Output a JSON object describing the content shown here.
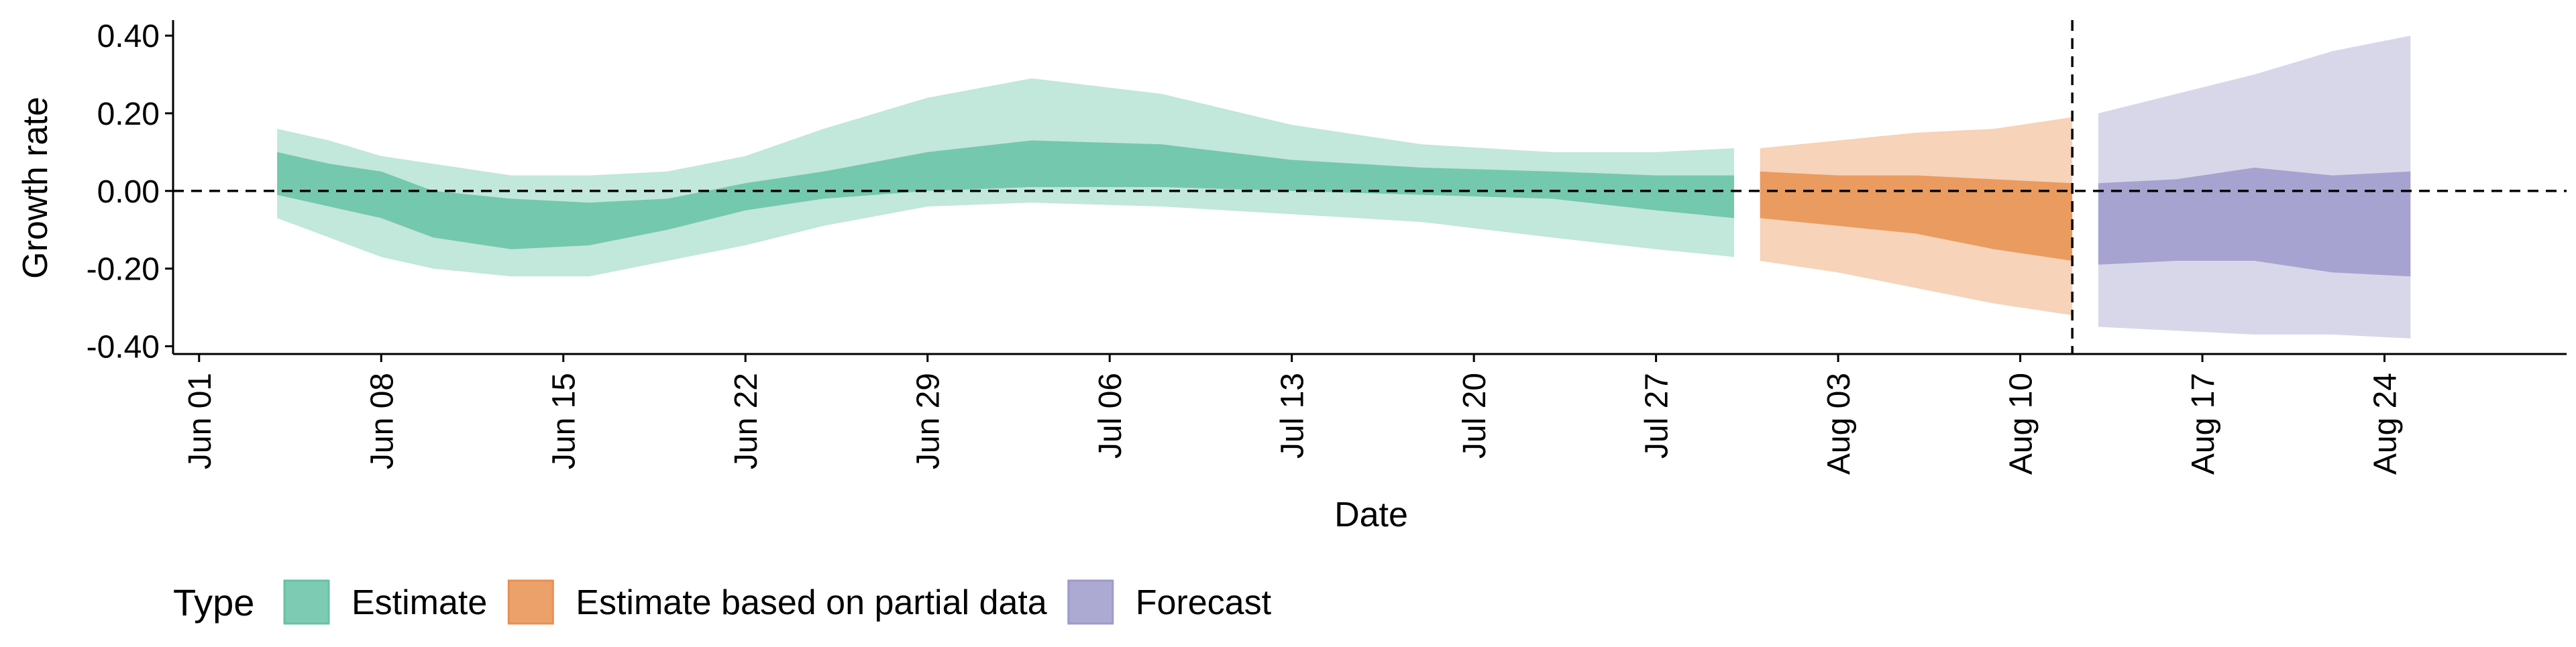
{
  "chart_data": {
    "type": "area",
    "title": "",
    "xlabel": "Date",
    "ylabel": "Growth rate",
    "x_ticks": [
      "Jun 01",
      "Jun 08",
      "Jun 15",
      "Jun 22",
      "Jun 29",
      "Jul 06",
      "Jul 13",
      "Jul 20",
      "Jul 27",
      "Aug 03",
      "Aug 10",
      "Aug 17",
      "Aug 24"
    ],
    "y_ticks": [
      "0.40",
      "0.20",
      "0.00",
      "-0.20",
      "-0.40"
    ],
    "ylim": [
      -0.42,
      0.44
    ],
    "xlim": [
      "2020-05-31",
      "2020-08-31"
    ],
    "forecast_start_line": "2020-08-12",
    "reference_line_y": 0,
    "legend_title": "Type",
    "legend_position": "bottom-left",
    "grid": false,
    "colors": {
      "Estimate": "#66c2a5",
      "Estimate based on partial data": "#e8904f",
      "Forecast": "#9d9acb"
    },
    "series": [
      {
        "name": "Estimate",
        "points": [
          {
            "x": "2020-06-04",
            "lower90": -0.07,
            "lower50": -0.01,
            "upper50": 0.1,
            "upper90": 0.16
          },
          {
            "x": "2020-06-06",
            "lower90": -0.12,
            "lower50": -0.04,
            "upper50": 0.07,
            "upper90": 0.13
          },
          {
            "x": "2020-06-08",
            "lower90": -0.17,
            "lower50": -0.07,
            "upper50": 0.05,
            "upper90": 0.09
          },
          {
            "x": "2020-06-10",
            "lower90": -0.2,
            "lower50": -0.12,
            "upper50": 0.0,
            "upper90": 0.07
          },
          {
            "x": "2020-06-13",
            "lower90": -0.22,
            "lower50": -0.15,
            "upper50": -0.02,
            "upper90": 0.04
          },
          {
            "x": "2020-06-16",
            "lower90": -0.22,
            "lower50": -0.14,
            "upper50": -0.03,
            "upper90": 0.04
          },
          {
            "x": "2020-06-19",
            "lower90": -0.18,
            "lower50": -0.1,
            "upper50": -0.02,
            "upper90": 0.05
          },
          {
            "x": "2020-06-22",
            "lower90": -0.14,
            "lower50": -0.05,
            "upper50": 0.02,
            "upper90": 0.09
          },
          {
            "x": "2020-06-25",
            "lower90": -0.09,
            "lower50": -0.02,
            "upper50": 0.05,
            "upper90": 0.16
          },
          {
            "x": "2020-06-29",
            "lower90": -0.04,
            "lower50": 0.0,
            "upper50": 0.1,
            "upper90": 0.24
          },
          {
            "x": "2020-07-03",
            "lower90": -0.03,
            "lower50": 0.01,
            "upper50": 0.13,
            "upper90": 0.29
          },
          {
            "x": "2020-07-08",
            "lower90": -0.04,
            "lower50": 0.01,
            "upper50": 0.12,
            "upper90": 0.25
          },
          {
            "x": "2020-07-13",
            "lower90": -0.06,
            "lower50": 0.0,
            "upper50": 0.08,
            "upper90": 0.17
          },
          {
            "x": "2020-07-18",
            "lower90": -0.08,
            "lower50": -0.01,
            "upper50": 0.06,
            "upper90": 0.12
          },
          {
            "x": "2020-07-23",
            "lower90": -0.12,
            "lower50": -0.02,
            "upper50": 0.05,
            "upper90": 0.1
          },
          {
            "x": "2020-07-27",
            "lower90": -0.15,
            "lower50": -0.05,
            "upper50": 0.04,
            "upper90": 0.1
          },
          {
            "x": "2020-07-30",
            "lower90": -0.17,
            "lower50": -0.07,
            "upper50": 0.04,
            "upper90": 0.11
          }
        ]
      },
      {
        "name": "Estimate based on partial data",
        "points": [
          {
            "x": "2020-07-31",
            "lower90": -0.18,
            "lower50": -0.07,
            "upper50": 0.05,
            "upper90": 0.11
          },
          {
            "x": "2020-08-03",
            "lower90": -0.21,
            "lower50": -0.09,
            "upper50": 0.04,
            "upper90": 0.13
          },
          {
            "x": "2020-08-06",
            "lower90": -0.25,
            "lower50": -0.11,
            "upper50": 0.04,
            "upper90": 0.15
          },
          {
            "x": "2020-08-09",
            "lower90": -0.29,
            "lower50": -0.15,
            "upper50": 0.03,
            "upper90": 0.16
          },
          {
            "x": "2020-08-12",
            "lower90": -0.32,
            "lower50": -0.18,
            "upper50": 0.02,
            "upper90": 0.19
          }
        ]
      },
      {
        "name": "Forecast",
        "points": [
          {
            "x": "2020-08-13",
            "lower90": -0.35,
            "lower50": -0.19,
            "upper50": 0.02,
            "upper90": 0.2
          },
          {
            "x": "2020-08-16",
            "lower90": -0.36,
            "lower50": -0.18,
            "upper50": 0.03,
            "upper90": 0.25
          },
          {
            "x": "2020-08-19",
            "lower90": -0.37,
            "lower50": -0.18,
            "upper50": 0.06,
            "upper90": 0.3
          },
          {
            "x": "2020-08-22",
            "lower90": -0.37,
            "lower50": -0.21,
            "upper50": 0.04,
            "upper90": 0.36
          },
          {
            "x": "2020-08-25",
            "lower90": -0.38,
            "lower50": -0.22,
            "upper50": 0.05,
            "upper90": 0.4
          }
        ]
      }
    ]
  }
}
